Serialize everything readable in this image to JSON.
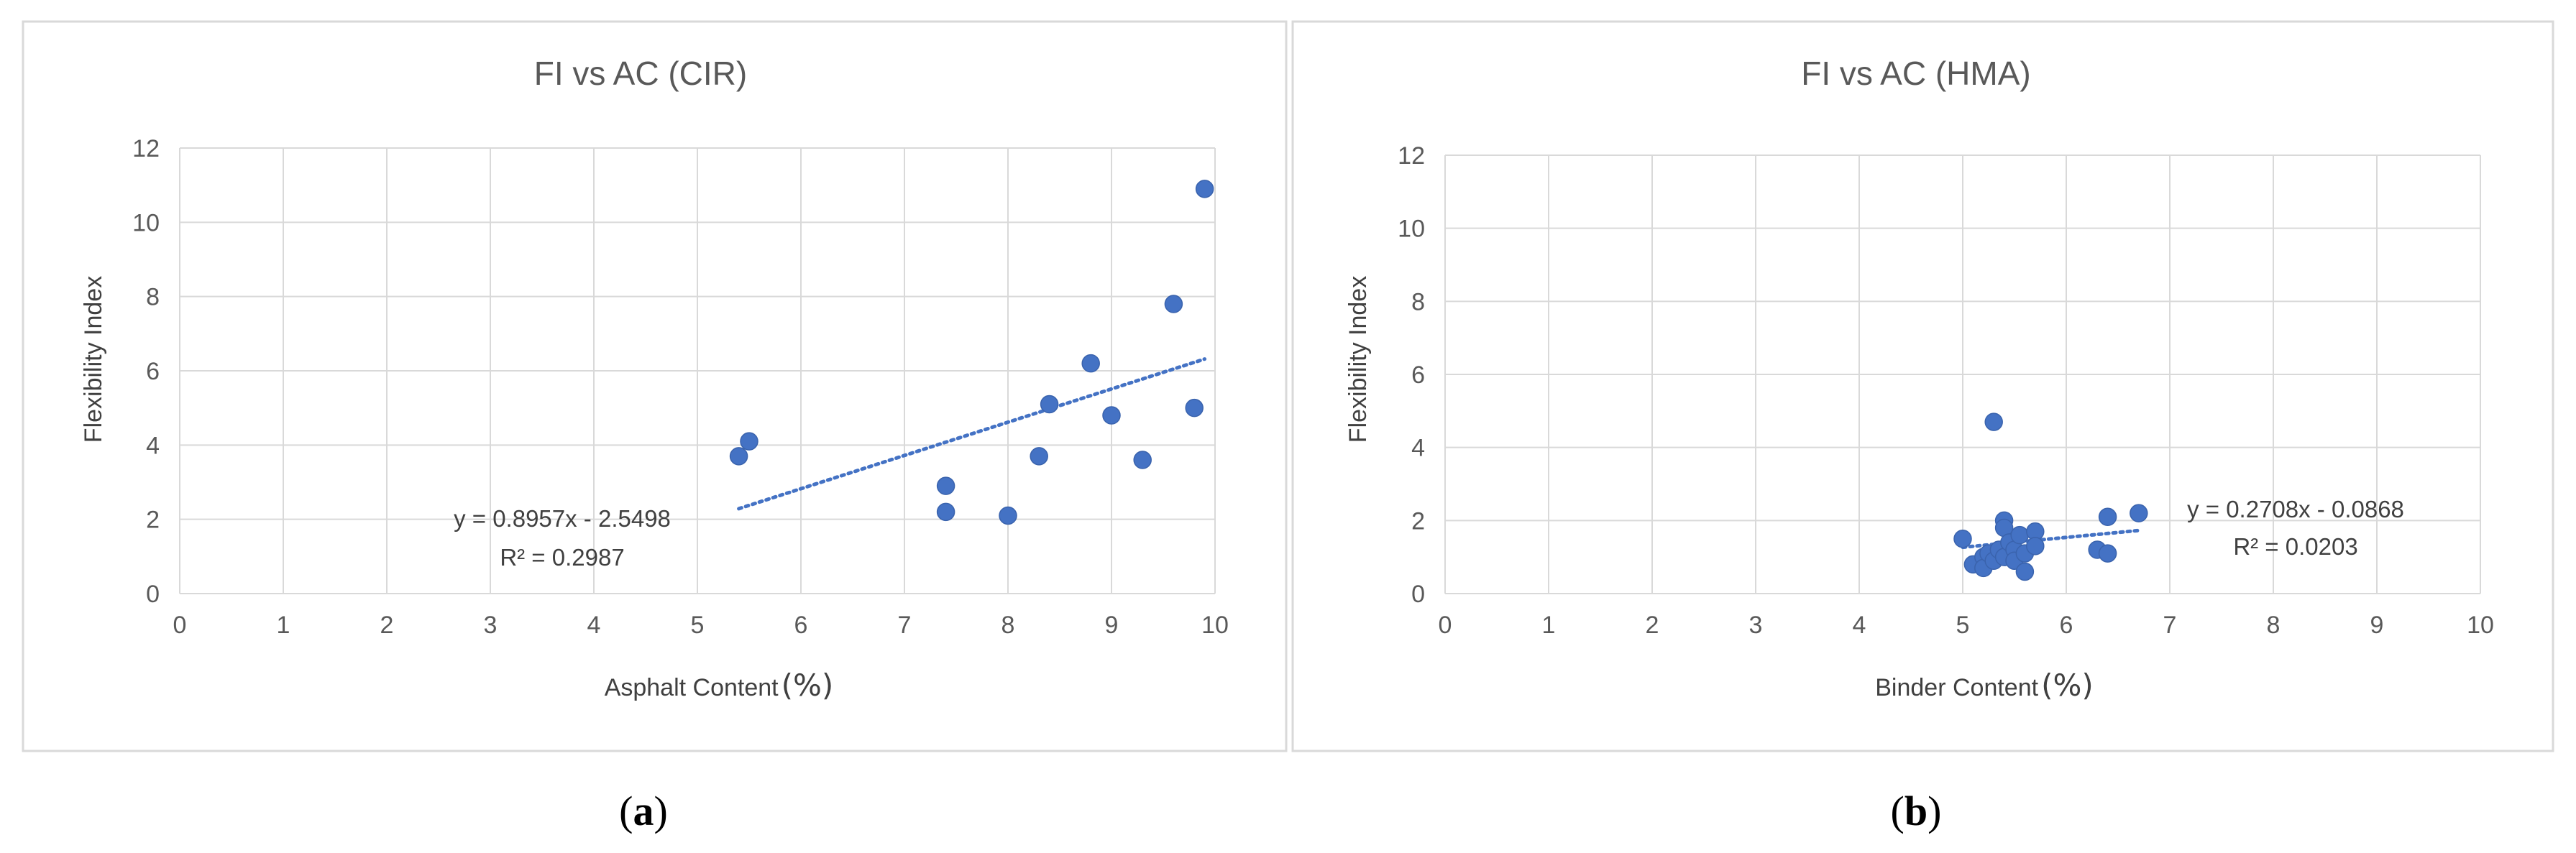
{
  "chart_data": [
    {
      "type": "scatter",
      "title": "FI vs AC (CIR)",
      "xlabel": "Asphalt Content",
      "xlabel_unit": "(%)",
      "ylabel": "Flexibility Index",
      "xlim": [
        0,
        10
      ],
      "ylim": [
        0,
        12
      ],
      "xticks": [
        "0",
        "1",
        "2",
        "3",
        "4",
        "5",
        "6",
        "7",
        "8",
        "9",
        "10"
      ],
      "yticks": [
        "0",
        "2",
        "4",
        "6",
        "8",
        "10",
        "12"
      ],
      "grid": true,
      "series": [
        {
          "color": "#4472c4",
          "points": [
            {
              "x": 5.4,
              "y": 3.7
            },
            {
              "x": 5.5,
              "y": 4.1
            },
            {
              "x": 7.4,
              "y": 2.9
            },
            {
              "x": 7.4,
              "y": 2.2
            },
            {
              "x": 8.0,
              "y": 2.1
            },
            {
              "x": 8.3,
              "y": 3.7
            },
            {
              "x": 8.4,
              "y": 5.1
            },
            {
              "x": 8.8,
              "y": 6.2
            },
            {
              "x": 9.0,
              "y": 4.8
            },
            {
              "x": 9.3,
              "y": 3.6
            },
            {
              "x": 9.6,
              "y": 7.8
            },
            {
              "x": 9.8,
              "y": 5.0
            },
            {
              "x": 9.9,
              "y": 10.9
            }
          ]
        }
      ],
      "trendline": {
        "slope": 0.8957,
        "intercept": -2.5498,
        "x_range": [
          5.4,
          9.9
        ],
        "style": "dotted",
        "color": "#4472c4"
      },
      "equation": "y = 0.8957x - 2.5498",
      "r_squared": "R² = 0.2987",
      "caption_label": "a"
    },
    {
      "type": "scatter",
      "title": "FI vs AC (HMA)",
      "xlabel": "Binder Content",
      "xlabel_unit": "(%)",
      "ylabel": "Flexibility Index",
      "xlim": [
        0,
        10
      ],
      "ylim": [
        0,
        12
      ],
      "xticks": [
        "0",
        "1",
        "2",
        "3",
        "4",
        "5",
        "6",
        "7",
        "8",
        "9",
        "10"
      ],
      "yticks": [
        "0",
        "2",
        "4",
        "6",
        "8",
        "10",
        "12"
      ],
      "grid": true,
      "series": [
        {
          "color": "#4472c4",
          "points": [
            {
              "x": 5.0,
              "y": 1.5
            },
            {
              "x": 5.1,
              "y": 0.8
            },
            {
              "x": 5.2,
              "y": 1.0
            },
            {
              "x": 5.2,
              "y": 0.7
            },
            {
              "x": 5.25,
              "y": 1.1
            },
            {
              "x": 5.3,
              "y": 0.9
            },
            {
              "x": 5.3,
              "y": 4.7
            },
            {
              "x": 5.35,
              "y": 1.2
            },
            {
              "x": 5.4,
              "y": 2.0
            },
            {
              "x": 5.4,
              "y": 1.8
            },
            {
              "x": 5.4,
              "y": 1.0
            },
            {
              "x": 5.45,
              "y": 1.4
            },
            {
              "x": 5.5,
              "y": 1.2
            },
            {
              "x": 5.5,
              "y": 0.9
            },
            {
              "x": 5.55,
              "y": 1.6
            },
            {
              "x": 5.6,
              "y": 1.1
            },
            {
              "x": 5.6,
              "y": 0.6
            },
            {
              "x": 5.7,
              "y": 1.7
            },
            {
              "x": 5.7,
              "y": 1.3
            },
            {
              "x": 6.3,
              "y": 1.2
            },
            {
              "x": 6.4,
              "y": 2.1
            },
            {
              "x": 6.4,
              "y": 1.1
            },
            {
              "x": 6.7,
              "y": 2.2
            }
          ]
        }
      ],
      "trendline": {
        "slope": 0.2708,
        "intercept": -0.0868,
        "x_range": [
          5.0,
          6.7
        ],
        "style": "dotted",
        "color": "#4472c4"
      },
      "equation": "y = 0.2708x - 0.0868",
      "r_squared": "R² = 0.0203",
      "caption_label": "b"
    }
  ]
}
